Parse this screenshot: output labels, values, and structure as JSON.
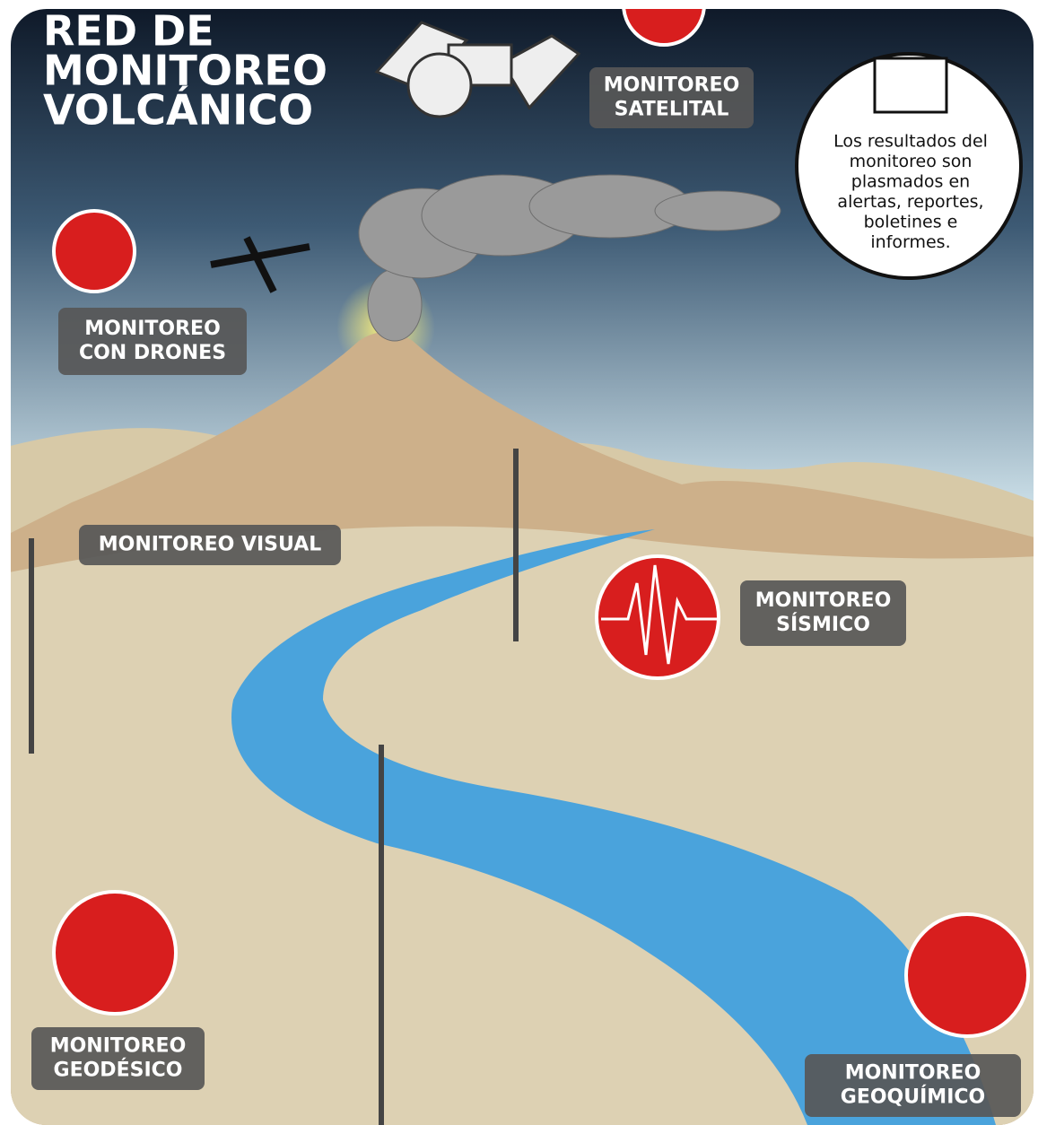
{
  "title": {
    "lines": [
      "RED DE",
      "MONITOREO",
      "VOLCÁNICO"
    ]
  },
  "labels": {
    "satelital": [
      "MONITOREO",
      "SATELITAL"
    ],
    "drones": [
      "MONITOREO",
      "CON DRONES"
    ],
    "visual": [
      "MONITOREO VISUAL"
    ],
    "sismico": [
      "MONITOREO",
      "SÍSMICO"
    ],
    "geodesico": [
      "MONITOREO",
      "GEODÉSICO"
    ],
    "geoquimico": [
      "MONITOREO",
      "GEOQUÍMICO"
    ]
  },
  "note": {
    "lines": [
      "Los resultados del",
      "monitoreo son",
      "plasmados en",
      "alertas, reportes,",
      "boletines e",
      "informes."
    ]
  }
}
